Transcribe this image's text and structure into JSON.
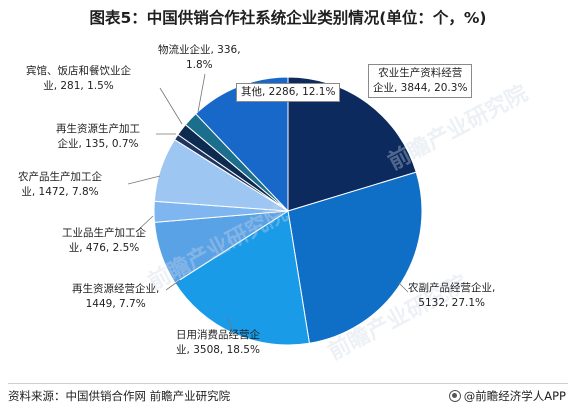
{
  "title": "图表5：中国供销合作社系统企业类别情况(单位：个，%)",
  "chart_data": {
    "type": "pie",
    "slices": [
      {
        "name": "农业生产资料经营企业",
        "value": 3844,
        "percent": "20.3%",
        "color": "#0d2a5e"
      },
      {
        "name": "农副产品经营企业",
        "value": 5132,
        "percent": "27.1%",
        "color": "#0f6fc6"
      },
      {
        "name": "日用消费品经营企业",
        "value": 3508,
        "percent": "18.5%",
        "color": "#1a9be8"
      },
      {
        "name": "再生资源经营企业",
        "value": 1449,
        "percent": "7.7%",
        "color": "#5aa2e6"
      },
      {
        "name": "工业品生产加工企业",
        "value": 476,
        "percent": "2.5%",
        "color": "#7fb6ef"
      },
      {
        "name": "农产品生产加工企业",
        "value": 1472,
        "percent": "7.8%",
        "color": "#9dc6f2"
      },
      {
        "name": "再生资源生产加工企业",
        "value": 135,
        "percent": "0.7%",
        "color": "#20355e"
      },
      {
        "name": "宾馆、饭店和餐饮业企业",
        "value": 281,
        "percent": "1.5%",
        "color": "#0d2b50"
      },
      {
        "name": "物流业企业",
        "value": 336,
        "percent": "1.8%",
        "color": "#1b6e8c"
      },
      {
        "name": "其他",
        "value": 2286,
        "percent": "12.1%",
        "color": "#1768c8"
      }
    ]
  },
  "labels": {
    "ag_supply": {
      "l1": "农业生产资料经营",
      "l2": "企业, 3844, 20.3%"
    },
    "ag_sideline": {
      "l1": "农副产品经营企业,",
      "l2": "5132, 27.1%"
    },
    "daily": {
      "l1": "日用消费品经营企",
      "l2": "业, 3508, 18.5%"
    },
    "recycle_biz": {
      "l1": "再生资源经营企业,",
      "l2": "1449, 7.7%"
    },
    "industrial": {
      "l1": "工业品生产加工企",
      "l2": "业, 476, 2.5%"
    },
    "ag_processing": {
      "l1": "农产品生产加工企",
      "l2": "业, 1472, 7.8%"
    },
    "recycle_proc": {
      "l1": "再生资源生产加工",
      "l2": "企业, 135, 0.7%"
    },
    "hotel": {
      "l1": "宾馆、饭店和餐饮业企",
      "l2": "业, 281, 1.5%"
    },
    "logistics": {
      "l1": "物流业企业, 336,",
      "l2": "1.8%"
    },
    "other": {
      "l1": "其他, 2286, 12.1%"
    }
  },
  "footer": {
    "source": "资料来源：中国供销合作网 前瞻产业研究院",
    "brand": "@前瞻经济学人APP"
  },
  "watermark": "前瞻产业研究院"
}
